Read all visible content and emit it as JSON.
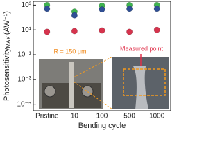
{
  "chart_data": {
    "type": "scatter",
    "log_y": true,
    "y_label": "Photosensitivity",
    "y_label_sub": "MAX",
    "y_label_unit": "(AW⁻¹)",
    "x_label": "Bending cycle",
    "categories": [
      "Pristine",
      "10",
      "100",
      "500",
      "1000"
    ],
    "series": [
      {
        "color": "#3fb34f",
        "values": [
          1000,
          300,
          900,
          1000,
          1000
        ]
      },
      {
        "color": "#2f4f95",
        "values": [
          500,
          150,
          450,
          500,
          500
        ]
      },
      {
        "color": "#d6334d",
        "values": [
          7,
          8,
          9,
          7,
          10
        ]
      }
    ],
    "ylim": [
      3e-06,
      2000
    ],
    "yticks": [
      {
        "value": 1e-05,
        "label": "10⁻⁵"
      },
      {
        "value": 0.001,
        "label": "10⁻³"
      },
      {
        "value": 0.1,
        "label": "10⁻¹"
      },
      {
        "value": 10,
        "label": "10¹"
      },
      {
        "value": 1000,
        "label": "10³"
      }
    ],
    "annotations": [
      "R = 150 μm",
      "Measured point"
    ]
  }
}
